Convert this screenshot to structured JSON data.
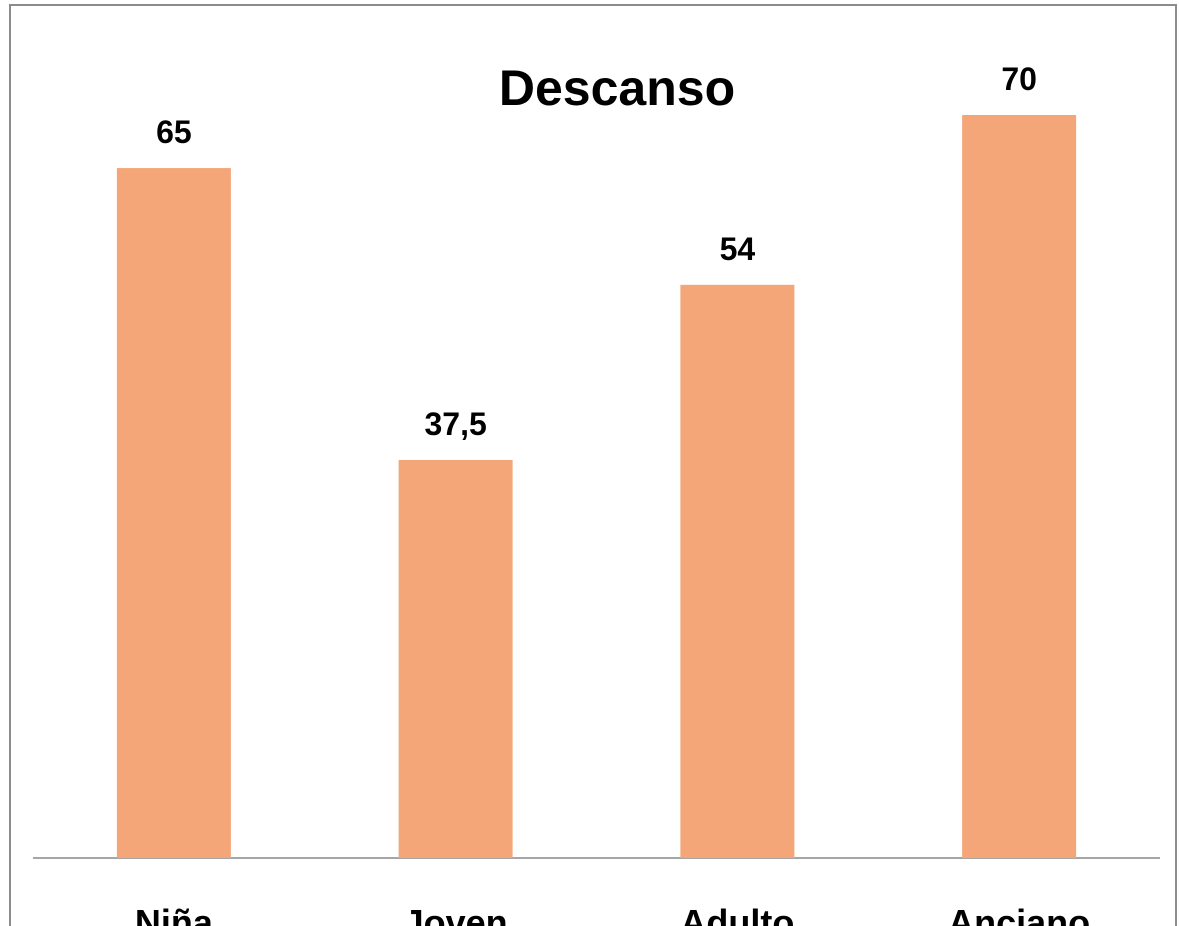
{
  "chart_data": {
    "type": "bar",
    "title": "Descanso",
    "categories": [
      "Niña",
      "Joven",
      "Adulto",
      "Anciano"
    ],
    "values": [
      65,
      37.5,
      54,
      70
    ],
    "value_labels": [
      "65",
      "37,5",
      "54",
      "70"
    ],
    "color": "#f4a679"
  }
}
